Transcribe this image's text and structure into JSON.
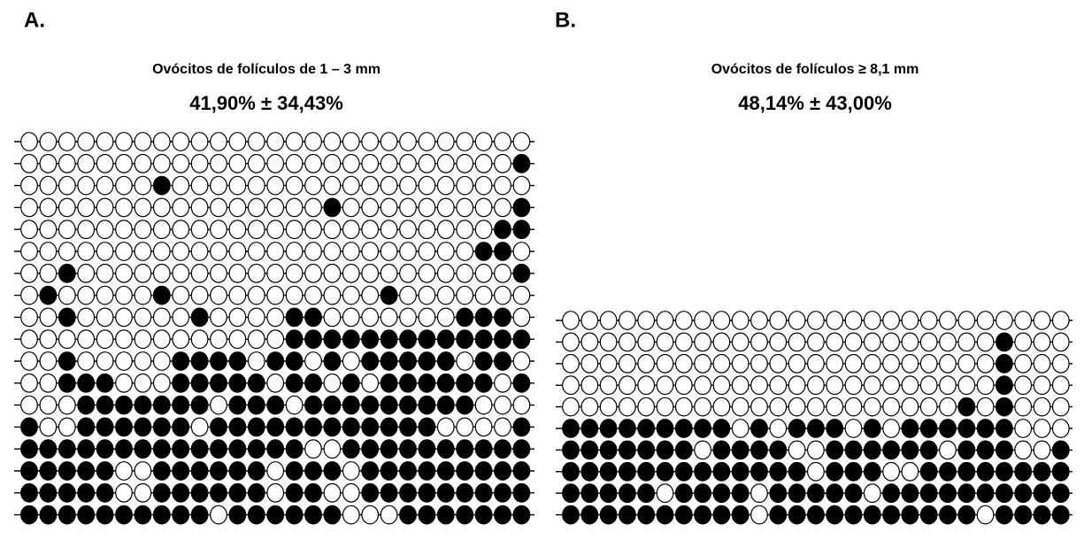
{
  "panels": [
    {
      "label": "A.",
      "title": "Ovócitos de folículos de 1 – 3 mm",
      "stat": "41,90% ± 34,43%",
      "rows": [
        [
          0,
          0,
          0,
          0,
          0,
          0,
          0,
          0,
          0,
          0,
          0,
          0,
          0,
          0,
          0,
          0,
          0,
          0,
          0,
          0,
          0,
          0,
          0,
          0,
          0,
          0,
          0
        ],
        [
          0,
          0,
          0,
          0,
          0,
          0,
          0,
          0,
          0,
          0,
          0,
          0,
          0,
          0,
          0,
          0,
          0,
          0,
          0,
          0,
          0,
          0,
          0,
          0,
          0,
          0,
          1
        ],
        [
          0,
          0,
          0,
          0,
          0,
          0,
          0,
          1,
          0,
          0,
          0,
          0,
          0,
          0,
          0,
          0,
          0,
          0,
          0,
          0,
          0,
          0,
          0,
          0,
          0,
          0,
          0
        ],
        [
          0,
          0,
          0,
          0,
          0,
          0,
          0,
          0,
          0,
          0,
          0,
          0,
          0,
          0,
          0,
          0,
          1,
          0,
          0,
          0,
          0,
          0,
          0,
          0,
          0,
          0,
          1
        ],
        [
          0,
          0,
          0,
          0,
          0,
          0,
          0,
          0,
          0,
          0,
          0,
          0,
          0,
          0,
          0,
          0,
          0,
          0,
          0,
          0,
          0,
          0,
          0,
          0,
          0,
          1,
          1
        ],
        [
          0,
          0,
          0,
          0,
          0,
          0,
          0,
          0,
          0,
          0,
          0,
          0,
          0,
          0,
          0,
          0,
          0,
          0,
          0,
          0,
          0,
          0,
          0,
          0,
          1,
          1,
          0
        ],
        [
          0,
          0,
          1,
          0,
          0,
          0,
          0,
          0,
          0,
          0,
          0,
          0,
          0,
          0,
          0,
          0,
          0,
          0,
          0,
          0,
          0,
          0,
          0,
          0,
          0,
          0,
          1
        ],
        [
          0,
          1,
          0,
          0,
          0,
          0,
          0,
          1,
          0,
          0,
          0,
          0,
          0,
          0,
          0,
          0,
          0,
          0,
          0,
          1,
          0,
          0,
          0,
          0,
          0,
          0,
          0
        ],
        [
          0,
          0,
          1,
          0,
          0,
          0,
          0,
          0,
          0,
          1,
          0,
          0,
          0,
          0,
          1,
          1,
          0,
          0,
          0,
          0,
          0,
          0,
          0,
          1,
          1,
          1,
          0
        ],
        [
          0,
          0,
          0,
          0,
          0,
          0,
          0,
          0,
          0,
          0,
          0,
          0,
          0,
          0,
          1,
          1,
          1,
          1,
          1,
          1,
          1,
          1,
          1,
          1,
          1,
          1,
          1
        ],
        [
          0,
          0,
          1,
          0,
          0,
          0,
          0,
          0,
          1,
          1,
          1,
          1,
          0,
          1,
          1,
          0,
          1,
          0,
          1,
          1,
          1,
          1,
          1,
          0,
          1,
          1,
          0
        ],
        [
          0,
          0,
          1,
          1,
          1,
          0,
          0,
          0,
          1,
          1,
          1,
          1,
          1,
          0,
          1,
          1,
          0,
          1,
          0,
          1,
          1,
          1,
          1,
          1,
          1,
          0,
          1
        ],
        [
          0,
          0,
          0,
          1,
          1,
          1,
          1,
          1,
          1,
          1,
          0,
          1,
          1,
          1,
          0,
          1,
          1,
          1,
          1,
          1,
          1,
          1,
          1,
          1,
          0,
          0,
          0
        ],
        [
          1,
          0,
          0,
          1,
          1,
          1,
          1,
          1,
          1,
          0,
          1,
          1,
          1,
          1,
          1,
          1,
          1,
          1,
          1,
          1,
          1,
          1,
          0,
          0,
          0,
          0,
          1
        ],
        [
          1,
          1,
          1,
          1,
          1,
          1,
          1,
          1,
          1,
          1,
          1,
          1,
          1,
          1,
          1,
          0,
          0,
          1,
          1,
          1,
          1,
          1,
          1,
          1,
          1,
          1,
          1
        ],
        [
          1,
          1,
          1,
          1,
          1,
          0,
          0,
          1,
          1,
          1,
          1,
          1,
          1,
          0,
          1,
          1,
          1,
          0,
          1,
          1,
          1,
          1,
          1,
          1,
          1,
          1,
          1
        ],
        [
          1,
          1,
          1,
          1,
          1,
          0,
          0,
          1,
          1,
          1,
          1,
          1,
          1,
          0,
          1,
          1,
          0,
          0,
          1,
          1,
          1,
          1,
          1,
          1,
          1,
          1,
          1
        ],
        [
          1,
          1,
          1,
          1,
          1,
          1,
          1,
          1,
          1,
          1,
          0,
          1,
          1,
          1,
          1,
          1,
          1,
          0,
          0,
          0,
          1,
          1,
          1,
          1,
          1,
          1,
          1
        ]
      ]
    },
    {
      "label": "B.",
      "title": "Ovócitos de folículos ≥ 8,1 mm",
      "stat": "48,14% ± 43,00%",
      "rows": [
        [
          0,
          0,
          0,
          0,
          0,
          0,
          0,
          0,
          0,
          0,
          0,
          0,
          0,
          0,
          0,
          0,
          0,
          0,
          0,
          0,
          0,
          0,
          0,
          0,
          0,
          0,
          0
        ],
        [
          0,
          0,
          0,
          0,
          0,
          0,
          0,
          0,
          0,
          0,
          0,
          0,
          0,
          0,
          0,
          0,
          0,
          0,
          0,
          0,
          0,
          0,
          0,
          1,
          0,
          0,
          0
        ],
        [
          0,
          0,
          0,
          0,
          0,
          0,
          0,
          0,
          0,
          0,
          0,
          0,
          0,
          0,
          0,
          0,
          0,
          0,
          0,
          0,
          0,
          0,
          0,
          1,
          0,
          0,
          0
        ],
        [
          0,
          0,
          0,
          0,
          0,
          0,
          0,
          0,
          0,
          0,
          0,
          0,
          0,
          0,
          0,
          0,
          0,
          0,
          0,
          0,
          0,
          0,
          0,
          1,
          0,
          0,
          0
        ],
        [
          0,
          0,
          0,
          0,
          0,
          0,
          0,
          0,
          0,
          0,
          0,
          0,
          0,
          0,
          0,
          0,
          0,
          0,
          0,
          0,
          0,
          1,
          0,
          1,
          0,
          0,
          0
        ],
        [
          1,
          1,
          1,
          1,
          1,
          1,
          1,
          1,
          1,
          0,
          1,
          0,
          1,
          1,
          1,
          0,
          1,
          0,
          1,
          1,
          1,
          1,
          1,
          1,
          0,
          0,
          0
        ],
        [
          1,
          1,
          1,
          1,
          1,
          1,
          1,
          0,
          1,
          1,
          1,
          1,
          0,
          0,
          1,
          1,
          1,
          1,
          1,
          1,
          0,
          1,
          1,
          1,
          0,
          0,
          1
        ],
        [
          1,
          1,
          1,
          1,
          1,
          1,
          1,
          1,
          1,
          1,
          1,
          1,
          1,
          0,
          1,
          1,
          1,
          0,
          0,
          1,
          1,
          1,
          1,
          1,
          1,
          1,
          1
        ],
        [
          1,
          1,
          1,
          1,
          1,
          0,
          1,
          1,
          1,
          1,
          0,
          1,
          1,
          1,
          1,
          1,
          0,
          1,
          1,
          1,
          1,
          1,
          1,
          1,
          1,
          1,
          1
        ],
        [
          1,
          1,
          1,
          1,
          1,
          1,
          1,
          1,
          1,
          1,
          0,
          1,
          1,
          1,
          1,
          1,
          1,
          1,
          1,
          1,
          1,
          1,
          0,
          1,
          1,
          1,
          1
        ]
      ]
    }
  ]
}
